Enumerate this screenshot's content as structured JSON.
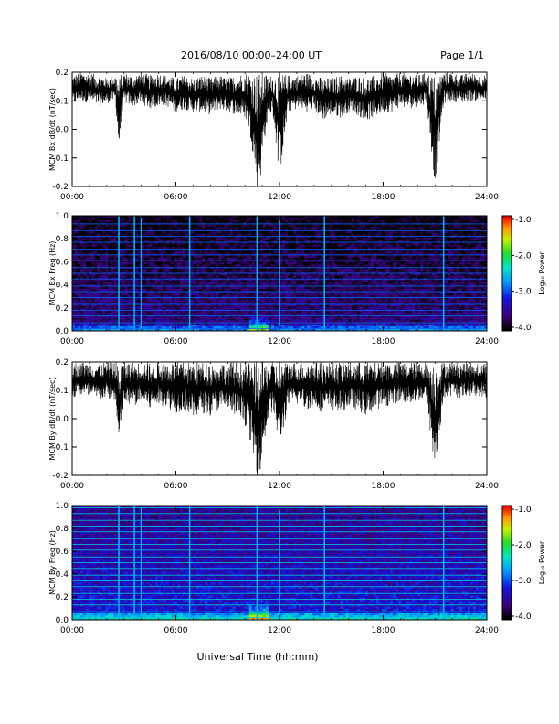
{
  "header": {
    "title": "2016/08/10   00:00–24:00 UT",
    "page": "Page 1/1"
  },
  "xlabel": "Universal Time (hh:mm)",
  "chart_data": [
    {
      "type": "line",
      "ylabel": "MCM Bx dB/dt (nT/sec)",
      "xlim": [
        "00:00",
        "24:00"
      ],
      "ylim": [
        -0.2,
        0.2
      ],
      "xticks": [
        "00:00",
        "06:00",
        "12:00",
        "18:00",
        "24:00"
      ],
      "yticks": [
        "0.2",
        "0.1",
        "0.0",
        "-0.1",
        "-0.2"
      ],
      "series": [
        {
          "x_hours": [
            0,
            0.5,
            1,
            1.5,
            2,
            2.5,
            2.7,
            3,
            3.5,
            4,
            4.5,
            5,
            5.5,
            6,
            6.5,
            7,
            7.5,
            8,
            8.5,
            9,
            9.5,
            10,
            10.3,
            10.5,
            10.7,
            10.9,
            11.1,
            11.3,
            11.6,
            12,
            12.5,
            13,
            13.5,
            14,
            14.5,
            15,
            15.5,
            16,
            16.5,
            17,
            17.5,
            18,
            18.5,
            19,
            19.5,
            20,
            20.5,
            21,
            21.5,
            22,
            22.5,
            23,
            23.5,
            24
          ],
          "y_upper": [
            0.19,
            0.2,
            0.2,
            0.19,
            0.18,
            0.19,
            0.18,
            0.2,
            0.19,
            0.2,
            0.19,
            0.2,
            0.19,
            0.18,
            0.19,
            0.18,
            0.19,
            0.18,
            0.19,
            0.18,
            0.19,
            0.2,
            0.2,
            0.2,
            0.2,
            0.2,
            0.2,
            0.19,
            0.19,
            0.2,
            0.19,
            0.19,
            0.2,
            0.19,
            0.18,
            0.18,
            0.19,
            0.18,
            0.19,
            0.18,
            0.19,
            0.2,
            0.19,
            0.2,
            0.2,
            0.19,
            0.2,
            0.19,
            0.2,
            0.2,
            0.19,
            0.2,
            0.19,
            0.19
          ],
          "y_lower": [
            0.08,
            0.1,
            0.09,
            0.08,
            0.09,
            0.1,
            -0.08,
            0.09,
            0.08,
            0.09,
            0.07,
            0.08,
            0.08,
            0.06,
            0.07,
            0.06,
            0.06,
            0.05,
            0.07,
            0.06,
            0.05,
            0.04,
            -0.02,
            -0.1,
            -0.21,
            -0.18,
            -0.05,
            0.02,
            0.06,
            -0.17,
            0.06,
            0.07,
            0.06,
            0.07,
            0.03,
            0.05,
            0.04,
            0.06,
            0.05,
            0.03,
            0.04,
            0.06,
            0.06,
            0.08,
            0.07,
            0.08,
            0.09,
            -0.2,
            0.09,
            0.1,
            0.09,
            0.1,
            0.1,
            0.1
          ]
        }
      ]
    },
    {
      "type": "heatmap",
      "ylabel": "MCM Bx Freq (Hz)",
      "xlim": [
        "00:00",
        "24:00"
      ],
      "ylim": [
        0.0,
        1.0
      ],
      "xticks": [
        "00:00",
        "06:00",
        "12:00",
        "18:00",
        "24:00"
      ],
      "yticks": [
        "1.0",
        "0.8",
        "0.6",
        "0.4",
        "0.2",
        "0.0"
      ],
      "colorbar": {
        "label": "Log₁₀ Power",
        "ticks": [
          "-1.0",
          "-2.0",
          "-3.0",
          "-4.0"
        ],
        "range": [
          -4.0,
          -1.0
        ]
      },
      "baseline_log_power": -3.6,
      "harmonic_lines_hz": [
        0.02,
        0.07,
        0.13,
        0.18,
        0.23,
        0.29,
        0.34,
        0.39,
        0.45,
        0.5,
        0.55,
        0.61,
        0.66,
        0.71,
        0.77,
        0.82,
        0.87,
        0.93,
        0.98
      ],
      "impulse_times_hours": [
        2.7,
        3.6,
        4.0,
        6.8,
        10.7,
        12.0,
        14.6,
        21.5
      ],
      "low_freq_enhancement_hours": [
        10.2,
        11.3
      ]
    },
    {
      "type": "line",
      "ylabel": "MCM By dB/dt (nT/sec)",
      "xlim": [
        "00:00",
        "24:00"
      ],
      "ylim": [
        -0.2,
        0.2
      ],
      "xticks": [
        "00:00",
        "06:00",
        "12:00",
        "18:00",
        "24:00"
      ],
      "yticks": [
        "0.2",
        "0.1",
        "0.0",
        "-0.1",
        "-0.2"
      ],
      "series": [
        {
          "x_hours": [
            0,
            0.5,
            1,
            1.5,
            2,
            2.5,
            2.7,
            3,
            3.5,
            4,
            4.5,
            5,
            5.5,
            6,
            6.5,
            7,
            7.5,
            8,
            8.5,
            9,
            9.5,
            10,
            10.3,
            10.5,
            10.7,
            10.9,
            11.1,
            11.3,
            11.6,
            12,
            12.5,
            13,
            13.5,
            14,
            14.5,
            15,
            15.5,
            16,
            16.5,
            17,
            17.5,
            18,
            18.5,
            19,
            19.5,
            20,
            20.5,
            21,
            21.5,
            22,
            22.5,
            23,
            23.5,
            24
          ],
          "y_upper": [
            0.2,
            0.2,
            0.2,
            0.2,
            0.2,
            0.2,
            0.2,
            0.2,
            0.2,
            0.2,
            0.2,
            0.2,
            0.2,
            0.2,
            0.2,
            0.2,
            0.2,
            0.2,
            0.2,
            0.2,
            0.2,
            0.2,
            0.2,
            0.2,
            0.2,
            0.2,
            0.2,
            0.2,
            0.2,
            0.2,
            0.2,
            0.2,
            0.2,
            0.2,
            0.2,
            0.2,
            0.2,
            0.2,
            0.2,
            0.2,
            0.2,
            0.2,
            0.2,
            0.2,
            0.2,
            0.2,
            0.2,
            0.2,
            0.2,
            0.2,
            0.2,
            0.2,
            0.2,
            0.2
          ],
          "y_lower": [
            0.07,
            0.08,
            0.07,
            0.06,
            0.07,
            0.06,
            -0.12,
            0.05,
            0.04,
            0.06,
            0.03,
            0.05,
            0.04,
            0.02,
            0.03,
            0.0,
            0.02,
            0.01,
            0.03,
            0.02,
            0.01,
            -0.02,
            -0.08,
            -0.15,
            -0.2,
            -0.18,
            -0.1,
            -0.02,
            0.03,
            -0.1,
            0.04,
            0.05,
            0.03,
            0.04,
            0.02,
            0.03,
            0.02,
            0.04,
            0.03,
            0.01,
            0.03,
            0.04,
            0.05,
            0.06,
            0.05,
            0.06,
            0.07,
            -0.2,
            0.07,
            0.08,
            0.07,
            0.08,
            0.08,
            0.07
          ]
        }
      ]
    },
    {
      "type": "heatmap",
      "ylabel": "MCM By Freq (Hz)",
      "xlim": [
        "00:00",
        "24:00"
      ],
      "ylim": [
        0.0,
        1.0
      ],
      "xticks": [
        "00:00",
        "06:00",
        "12:00",
        "18:00",
        "24:00"
      ],
      "yticks": [
        "1.0",
        "0.8",
        "0.6",
        "0.4",
        "0.2",
        "0.0"
      ],
      "colorbar": {
        "label": "Log₁₀ Power",
        "ticks": [
          "-1.0",
          "-2.0",
          "-3.0",
          "-4.0"
        ],
        "range": [
          -4.0,
          -1.0
        ]
      },
      "baseline_log_power": -3.2,
      "harmonic_lines_hz": [
        0.02,
        0.07,
        0.13,
        0.18,
        0.23,
        0.29,
        0.34,
        0.39,
        0.45,
        0.5,
        0.55,
        0.61,
        0.66,
        0.71,
        0.77,
        0.82,
        0.87,
        0.93,
        0.98
      ],
      "impulse_times_hours": [
        2.7,
        3.6,
        4.0,
        6.8,
        10.7,
        12.0,
        14.6,
        21.5
      ],
      "low_freq_enhancement_hours": [
        10.2,
        11.3
      ]
    }
  ]
}
